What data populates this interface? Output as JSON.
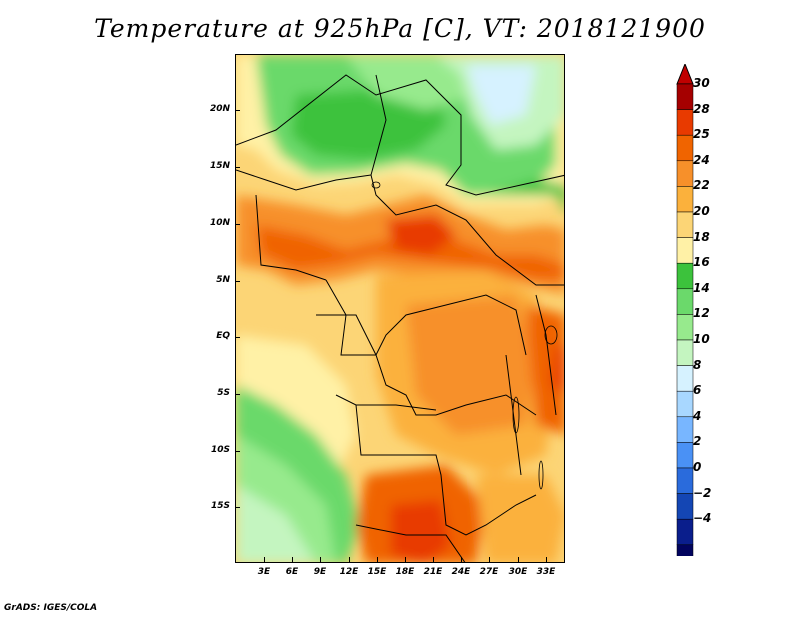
{
  "title": "Temperature at 925hPa [C], VT: 2018121900",
  "credit": "GrADS: IGES/COLA",
  "lat_labels": [
    "20N",
    "15N",
    "10N",
    "5N",
    "EQ",
    "5S",
    "10S",
    "15S"
  ],
  "lon_labels": [
    "3E",
    "6E",
    "9E",
    "12E",
    "15E",
    "18E",
    "21E",
    "24E",
    "27E",
    "30E",
    "33E"
  ],
  "colorbar": {
    "labels": [
      "30",
      "28",
      "25",
      "24",
      "22",
      "20",
      "18",
      "16",
      "14",
      "12",
      "10",
      "8",
      "6",
      "4",
      "2",
      "0",
      "-2",
      "-4"
    ],
    "colors": [
      "#a50000",
      "#e83a00",
      "#f06400",
      "#f7902a",
      "#fbb13c",
      "#fcd576",
      "#fff1a6",
      "#3cc23c",
      "#6bd96b",
      "#97ea8d",
      "#c4f5c0",
      "#d6f2ff",
      "#a8d7ff",
      "#78b6ff",
      "#4a91f5",
      "#2a6bdc",
      "#1446b4",
      "#0a1e8c",
      "#02045e"
    ],
    "end_low": "#dce6ff",
    "end_high": "#c00000"
  },
  "map": {
    "lon_range": [
      0,
      35
    ],
    "lat_range": [
      -20,
      24
    ]
  }
}
